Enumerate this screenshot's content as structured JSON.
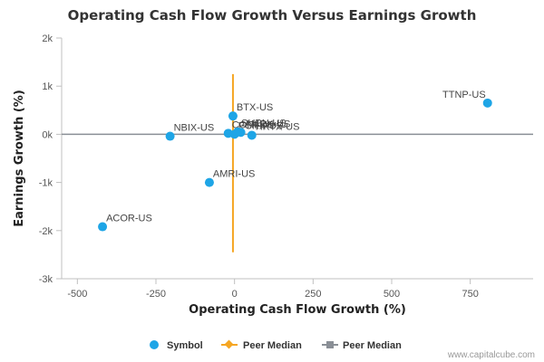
{
  "chart_data": {
    "type": "scatter",
    "title": "Operating Cash Flow Growth Versus Earnings Growth",
    "xlabel": "Operating Cash Flow Growth (%)",
    "ylabel": "Earnings Growth (%)",
    "xlim": [
      -550,
      950
    ],
    "ylim": [
      -3000,
      2000
    ],
    "x_ticks": [
      -500,
      -250,
      0,
      250,
      500,
      750
    ],
    "x_tick_labels": [
      "-500",
      "-250",
      "0",
      "250",
      "500",
      "750"
    ],
    "y_ticks": [
      2000,
      1000,
      0,
      -1000,
      -2000,
      -3000
    ],
    "y_tick_labels": [
      "2k",
      "1k",
      "0k",
      "-1k",
      "-2k",
      "-3k"
    ],
    "series": [
      {
        "name": "Symbol",
        "color": "#1ea5e6",
        "points": [
          {
            "label": "TTNP-US",
            "x": 805,
            "y": 650
          },
          {
            "label": "BTX-US",
            "x": -5,
            "y": 380
          },
          {
            "label": "NBIX-US",
            "x": -205,
            "y": -40
          },
          {
            "label": "AMRI-US",
            "x": -80,
            "y": -1000
          },
          {
            "label": "ACOR-US",
            "x": -420,
            "y": -1920
          },
          {
            "label": "CORI-US",
            "x": -20,
            "y": 20
          },
          {
            "label": "PCRX-US",
            "x": 0,
            "y": 0
          },
          {
            "label": "SUPN-US",
            "x": 10,
            "y": 50
          },
          {
            "label": "AMRX-US",
            "x": 20,
            "y": 40
          },
          {
            "label": "HRTX-US",
            "x": 55,
            "y": -20
          }
        ]
      }
    ],
    "reference_lines": [
      {
        "name": "Peer Median",
        "orientation": "vertical",
        "x": -5,
        "y_range": [
          -2450,
          1250
        ],
        "color": "#f5a623"
      },
      {
        "name": "Peer Median",
        "orientation": "horizontal",
        "y": 0,
        "color": "#8a8f96"
      }
    ],
    "legend": {
      "position": "bottom",
      "items": [
        {
          "label": "Symbol",
          "marker": "circle",
          "color": "#1ea5e6"
        },
        {
          "label": "Peer Median",
          "marker": "diamond-line",
          "color": "#f5a623"
        },
        {
          "label": "Peer Median",
          "marker": "square-line",
          "color": "#8a8f96"
        }
      ]
    },
    "grid": false,
    "credit": "www.capitalcube.com"
  }
}
